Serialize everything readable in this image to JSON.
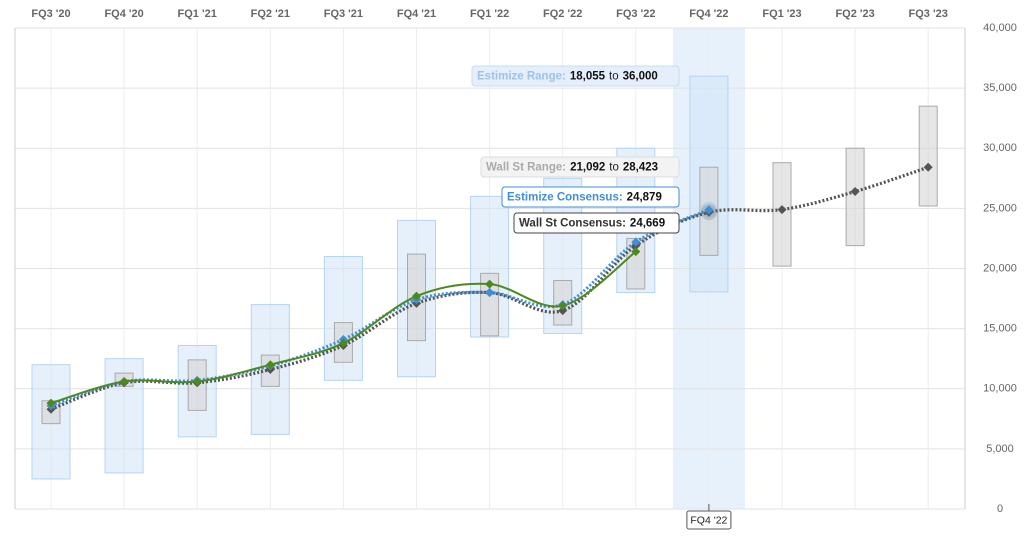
{
  "chart_data": {
    "type": "estimate-range",
    "categories": [
      "FQ3 '20",
      "FQ4 '20",
      "FQ1 '21",
      "FQ2 '21",
      "FQ3 '21",
      "FQ4 '21",
      "FQ1 '22",
      "FQ2 '22",
      "FQ3 '22",
      "FQ4 '22",
      "FQ1 '23",
      "FQ2 '23",
      "FQ3 '23"
    ],
    "ylim": [
      0,
      40000
    ],
    "yticks": [
      {
        "value": 0,
        "label": "0"
      },
      {
        "value": 5000,
        "label": "5,000"
      },
      {
        "value": 10000,
        "label": "10,000"
      },
      {
        "value": 15000,
        "label": "15,000"
      },
      {
        "value": 20000,
        "label": "20,000"
      },
      {
        "value": 25000,
        "label": "25,000"
      },
      {
        "value": 30000,
        "label": "30,000"
      },
      {
        "value": 35000,
        "label": "35,000"
      },
      {
        "value": 40000,
        "label": "40,000"
      }
    ],
    "grid": true,
    "estimize_range": {
      "color": "#cfe3f7",
      "low": [
        2500,
        3000,
        6000,
        6200,
        10700,
        11000,
        14300,
        14600,
        18000,
        18055,
        null,
        null,
        null
      ],
      "high": [
        12000,
        12500,
        13600,
        17000,
        21000,
        24000,
        26000,
        27500,
        30000,
        36000,
        null,
        null,
        null
      ]
    },
    "wallst_range": {
      "color": "#d6d6d6",
      "low": [
        7100,
        10200,
        8200,
        10200,
        12200,
        14000,
        14400,
        15300,
        18300,
        21092,
        20200,
        21900,
        25200
      ],
      "high": [
        9000,
        11300,
        12400,
        12800,
        15500,
        21200,
        19600,
        19000,
        22500,
        28423,
        28800,
        30000,
        33500
      ]
    },
    "series": [
      {
        "color": "#4d8a1e",
        "values": [
          8800,
          10600,
          10600,
          12000,
          13800,
          17700,
          18700,
          16900,
          21400,
          null,
          null,
          null,
          null
        ]
      },
      {
        "color": "#3f8fd8",
        "values": [
          8600,
          10600,
          10700,
          11900,
          14100,
          17400,
          18000,
          17000,
          22200,
          24879,
          null,
          null,
          null
        ]
      },
      {
        "color": "#555555",
        "values": [
          8300,
          10500,
          10500,
          11600,
          13600,
          17100,
          18000,
          16500,
          21900,
          24669,
          24900,
          26400,
          28423
        ]
      }
    ],
    "tooltip": {
      "category": "FQ4 '22",
      "items": [
        {
          "label": "Estimize Range:",
          "value_labels": [
            "18,055",
            "36,000"
          ],
          "joiner": "to"
        },
        {
          "label": "Wall St Range:",
          "value_labels": [
            "21,092",
            "28,423"
          ],
          "joiner": "to"
        },
        {
          "label": "Estimize Consensus:",
          "value_labels": [
            "24,879"
          ]
        },
        {
          "label": "Wall St Consensus:",
          "value_labels": [
            "24,669"
          ]
        }
      ]
    }
  }
}
